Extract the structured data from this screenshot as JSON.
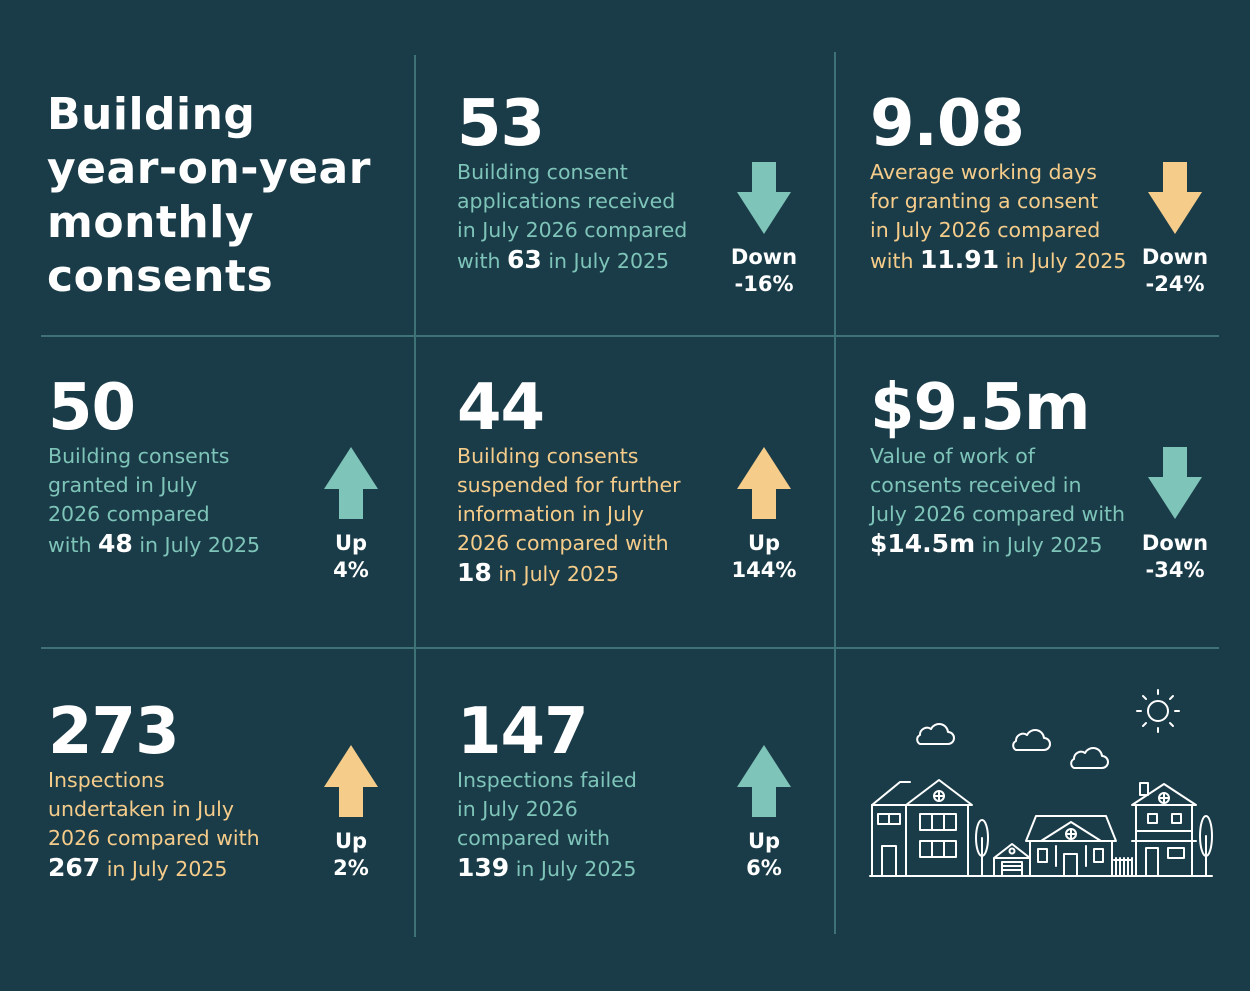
{
  "title": [
    "Building",
    "year-on-year",
    "monthly",
    "consents"
  ],
  "colors": {
    "background": "#1a3c49",
    "teal": "#7ec4b8",
    "yellow": "#f5cc8a",
    "white": "#ffffff"
  },
  "stats": [
    {
      "value": "53",
      "text": [
        "Building consent",
        "applications received",
        "in July 2026 compared"
      ],
      "prefix": "with ",
      "compare": "63",
      "suffix": " in July 2025",
      "direction": "Down",
      "percent": "-16%",
      "color": "teal"
    },
    {
      "value": "9.08",
      "text": [
        "Average working days",
        "for granting a consent",
        "in July 2026 compared"
      ],
      "prefix": "with ",
      "compare": "11.91",
      "suffix": " in July 2025",
      "direction": "Down",
      "percent": "-24%",
      "color": "yellow"
    },
    {
      "value": "50",
      "text": [
        "Building consents",
        "granted in July",
        "2026 compared"
      ],
      "prefix": "with ",
      "compare": "48",
      "suffix": " in July 2025",
      "direction": "Up",
      "percent": "4%",
      "color": "teal"
    },
    {
      "value": "44",
      "text": [
        "Building consents",
        "suspended for further",
        "information in July",
        "2026 compared with"
      ],
      "prefix": "",
      "compare": "18",
      "suffix": " in July 2025",
      "direction": "Up",
      "percent": "144%",
      "color": "yellow"
    },
    {
      "value": "$9.5m",
      "text": [
        "Value of work of",
        "consents received in",
        "July 2026 compared with"
      ],
      "prefix": "",
      "compare": "$14.5m",
      "suffix": " in July 2025",
      "direction": "Down",
      "percent": "-34%",
      "color": "teal"
    },
    {
      "value": "273",
      "text": [
        "Inspections",
        "undertaken in July",
        "2026 compared with"
      ],
      "prefix": "",
      "compare": "267",
      "suffix": " in July 2025",
      "direction": "Up",
      "percent": "2%",
      "color": "yellow"
    },
    {
      "value": "147",
      "text": [
        "Inspections failed",
        "in July 2026",
        "compared with"
      ],
      "prefix": "",
      "compare": "139",
      "suffix": " in July 2025",
      "direction": "Up",
      "percent": "6%",
      "color": "teal"
    }
  ],
  "illustration": {
    "icon": "houses-illustration-icon"
  }
}
